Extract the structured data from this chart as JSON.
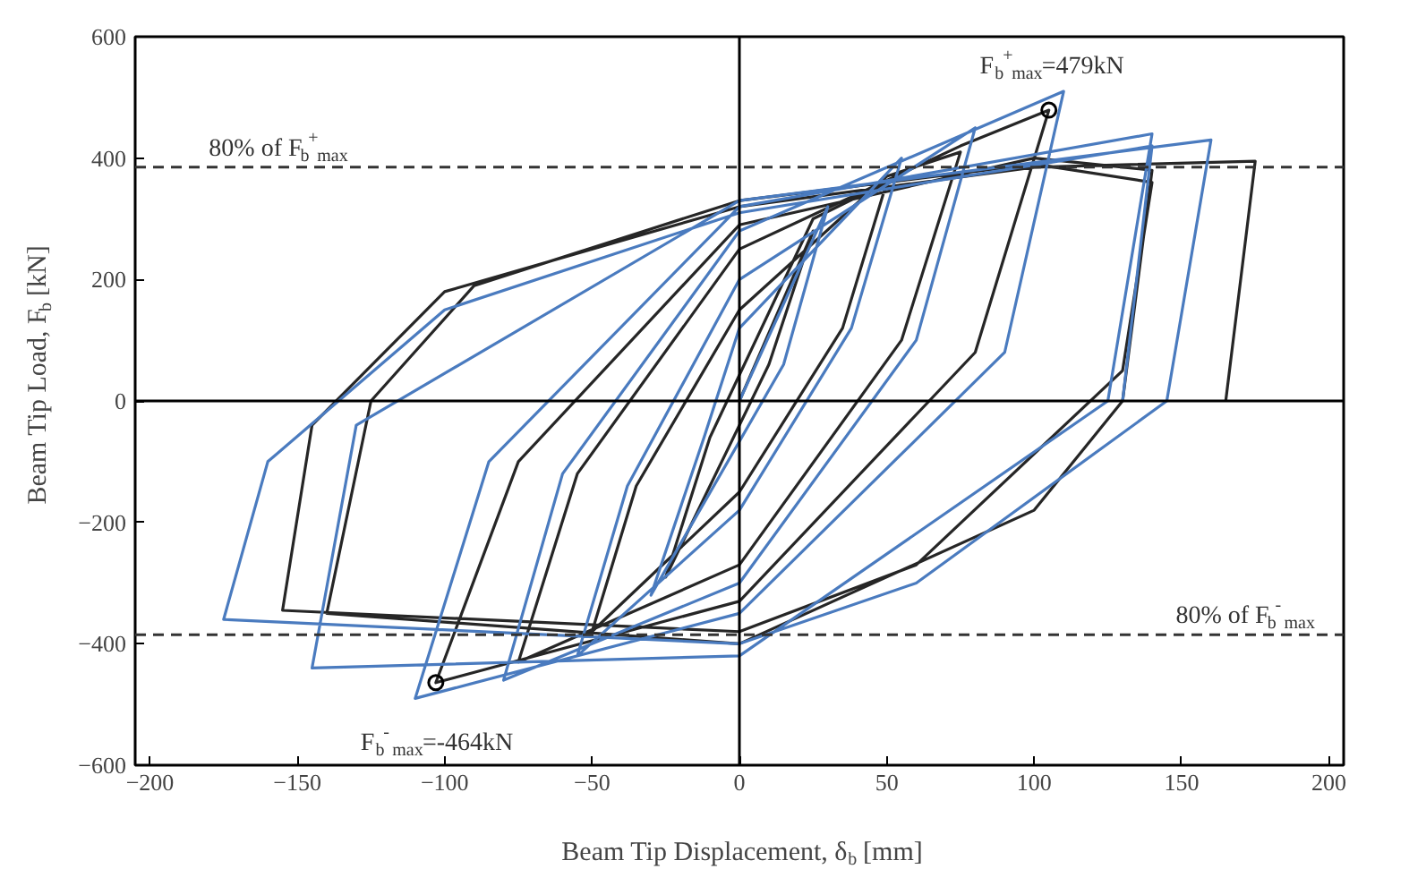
{
  "chart_data": {
    "type": "line",
    "xlabel": "Beam Tip Displacement, δ$_{b}$ [mm]",
    "ylabel": "Beam Tip Load, F$_{b}$ [kN]",
    "xlim": [
      -205,
      205
    ],
    "xticks": [
      -200,
      -150,
      -100,
      -50,
      0,
      50,
      100,
      150,
      200
    ],
    "ylim": [
      -600,
      600
    ],
    "yticks": [
      -600,
      -400,
      -200,
      0,
      200,
      400,
      600
    ],
    "grid": false,
    "marker": "none",
    "line_style": "solid",
    "series": [
      {
        "color": "#262626",
        "x": [
          0,
          25,
          10,
          -25,
          -10,
          25,
          50,
          35,
          0,
          -50,
          -35,
          0,
          50,
          75,
          55,
          0,
          -75,
          -55,
          0,
          75,
          105,
          80,
          0,
          -103,
          -75,
          0,
          100,
          140,
          130,
          100,
          0,
          -140,
          -125,
          -90,
          0,
          100,
          140,
          130,
          60,
          0,
          -155,
          -145,
          -100,
          0,
          100,
          175,
          165
        ],
        "values": [
          0,
          280,
          60,
          -290,
          -60,
          300,
          360,
          120,
          -150,
          -380,
          -140,
          150,
          370,
          410,
          100,
          -270,
          -430,
          -120,
          250,
          420,
          479,
          80,
          -330,
          -464,
          -100,
          290,
          400,
          380,
          0,
          -180,
          -400,
          -350,
          0,
          190,
          330,
          390,
          360,
          50,
          -270,
          -380,
          -345,
          -40,
          180,
          320,
          385,
          395,
          0
        ]
      },
      {
        "color": "#4a7bbf",
        "x": [
          0,
          30,
          15,
          -30,
          -12,
          0,
          55,
          38,
          0,
          -55,
          -38,
          0,
          80,
          60,
          0,
          -80,
          -60,
          0,
          110,
          90,
          0,
          -110,
          -85,
          0,
          140,
          125,
          0,
          -145,
          -130,
          0,
          160,
          145,
          60,
          0,
          -175,
          -160,
          -100,
          0,
          140,
          130
        ],
        "values": [
          0,
          320,
          60,
          -320,
          -60,
          120,
          400,
          120,
          -180,
          -420,
          -140,
          200,
          450,
          100,
          -300,
          -460,
          -120,
          280,
          510,
          80,
          -350,
          -490,
          -100,
          320,
          440,
          0,
          -420,
          -440,
          -40,
          330,
          430,
          0,
          -300,
          -400,
          -360,
          -100,
          150,
          310,
          420,
          0
        ]
      }
    ],
    "ref_lines": [
      {
        "axis": "x",
        "value": 0,
        "color": "#000000",
        "line_style": "solid"
      },
      {
        "axis": "y",
        "value": 0,
        "color": "#000000",
        "line_style": "solid"
      },
      {
        "axis": "y",
        "value": 385,
        "label": "80% of F$_{b}$$^{+}$$_{max}$",
        "color": "#333333",
        "line_style": "dashed"
      },
      {
        "axis": "y",
        "value": -385,
        "label": "80% of F$_{b}$$^{-}$$_{max}$",
        "color": "#333333",
        "line_style": "dashed"
      }
    ],
    "annotations": [
      {
        "text": "F$_{b}$$^{+}$$_{max}$=479kN",
        "x": 105,
        "y": 479
      },
      {
        "text": "F$_{b}$$^{-}$$_{max}$=-464kN",
        "x": -103,
        "y": -464
      }
    ]
  }
}
